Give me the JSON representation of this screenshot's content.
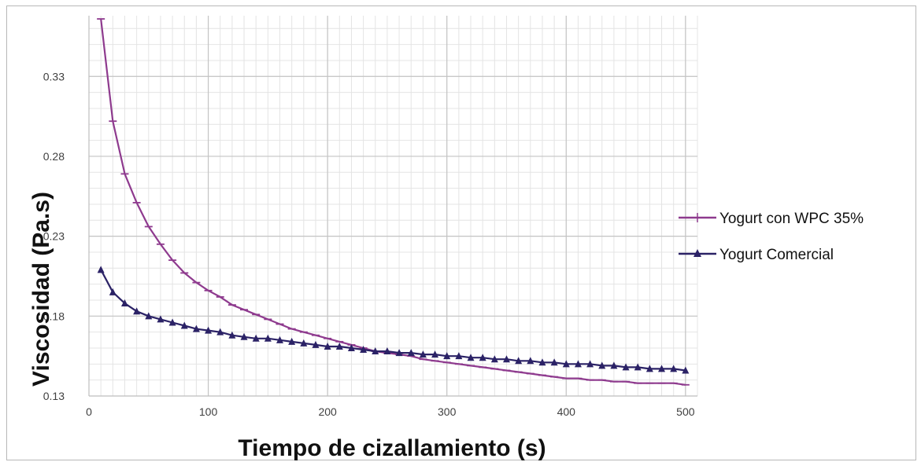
{
  "chart_data": {
    "type": "line",
    "title": "",
    "xlabel": "Tiempo de cizallamiento (s)",
    "ylabel": "Viscosidad (Pa.s)",
    "xlim": [
      0,
      510
    ],
    "ylim": [
      0.13,
      0.368
    ],
    "xticks": [
      0,
      100,
      200,
      300,
      400,
      500
    ],
    "yticks": [
      0.13,
      0.18,
      0.23,
      0.28,
      0.33
    ],
    "ytick_labels": [
      "0.13",
      "0.18",
      "0.23",
      "0.28",
      "0.33"
    ],
    "grid": true,
    "legend_position": "right",
    "series": [
      {
        "name": "Yogurt con WPC 35%",
        "color": "#8e3a8e",
        "marker": "dash",
        "x": [
          10,
          20,
          30,
          40,
          50,
          60,
          70,
          80,
          90,
          100,
          110,
          120,
          130,
          140,
          150,
          160,
          170,
          180,
          190,
          200,
          210,
          220,
          230,
          240,
          250,
          260,
          270,
          280,
          290,
          300,
          310,
          320,
          330,
          340,
          350,
          360,
          370,
          380,
          390,
          400,
          410,
          420,
          430,
          440,
          450,
          460,
          470,
          480,
          490,
          500
        ],
        "y": [
          0.366,
          0.302,
          0.269,
          0.251,
          0.236,
          0.225,
          0.215,
          0.207,
          0.201,
          0.196,
          0.192,
          0.187,
          0.184,
          0.181,
          0.178,
          0.175,
          0.172,
          0.17,
          0.168,
          0.166,
          0.164,
          0.162,
          0.16,
          0.158,
          0.157,
          0.156,
          0.155,
          0.153,
          0.152,
          0.151,
          0.15,
          0.149,
          0.148,
          0.147,
          0.146,
          0.145,
          0.144,
          0.143,
          0.142,
          0.141,
          0.141,
          0.14,
          0.14,
          0.139,
          0.139,
          0.138,
          0.138,
          0.138,
          0.138,
          0.137
        ]
      },
      {
        "name": "Yogurt Comercial",
        "color": "#2b2266",
        "marker": "triangle",
        "x": [
          10,
          20,
          30,
          40,
          50,
          60,
          70,
          80,
          90,
          100,
          110,
          120,
          130,
          140,
          150,
          160,
          170,
          180,
          190,
          200,
          210,
          220,
          230,
          240,
          250,
          260,
          270,
          280,
          290,
          300,
          310,
          320,
          330,
          340,
          350,
          360,
          370,
          380,
          390,
          400,
          410,
          420,
          430,
          440,
          450,
          460,
          470,
          480,
          490,
          500
        ],
        "y": [
          0.209,
          0.195,
          0.188,
          0.183,
          0.18,
          0.178,
          0.176,
          0.174,
          0.172,
          0.171,
          0.17,
          0.168,
          0.167,
          0.166,
          0.166,
          0.165,
          0.164,
          0.163,
          0.162,
          0.161,
          0.161,
          0.16,
          0.159,
          0.158,
          0.158,
          0.157,
          0.157,
          0.156,
          0.156,
          0.155,
          0.155,
          0.154,
          0.154,
          0.153,
          0.153,
          0.152,
          0.152,
          0.151,
          0.151,
          0.15,
          0.15,
          0.15,
          0.149,
          0.149,
          0.148,
          0.148,
          0.147,
          0.147,
          0.147,
          0.146
        ]
      }
    ]
  }
}
